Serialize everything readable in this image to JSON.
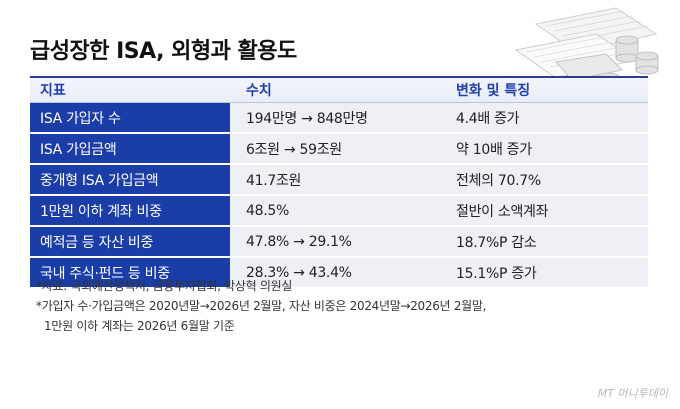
{
  "title": "급성장한 ISA, 외형과 활용도",
  "table": {
    "headers": [
      "지표",
      "수치",
      "변화 및 특징"
    ],
    "rows": [
      {
        "indicator": "ISA 가입자 수",
        "value": "194만명 → 848만명",
        "change": "4.4배 증가"
      },
      {
        "indicator": "ISA 가입금액",
        "value": "6조원 → 59조원",
        "change": "약 10배 증가"
      },
      {
        "indicator": "중개형 ISA 가입금액",
        "value": "41.7조원",
        "change": "전체의 70.7%"
      },
      {
        "indicator": "1만원 이하 계좌 비중",
        "value": "48.5%",
        "change": "절반이 소액계좌"
      },
      {
        "indicator": "예적금 등 자산 비중",
        "value": "47.8% → 29.1%",
        "change": "18.7%P 감소"
      },
      {
        "indicator": "국내 주식·펀드 등 비중",
        "value": "28.3% → 43.4%",
        "change": "15.1%P 증가"
      }
    ]
  },
  "notes": [
    "*자료: 국회예산정책처, 금융투자협회, 박상혁 의원실",
    "*가입자 수·가입금액은 2020년말→2026년 2월말, 자산 비중은 2024년말→2026년 2월말,",
    "1만원 이하 계좌는 2026년 6월말 기준"
  ],
  "logo": "MT 머니투데이",
  "colors": {
    "accent": "#1b3da8",
    "header_text": "#1f3fae",
    "cell_bg": "#eef0f6"
  },
  "icons": [
    "spreadsheet-coins-illustration"
  ]
}
